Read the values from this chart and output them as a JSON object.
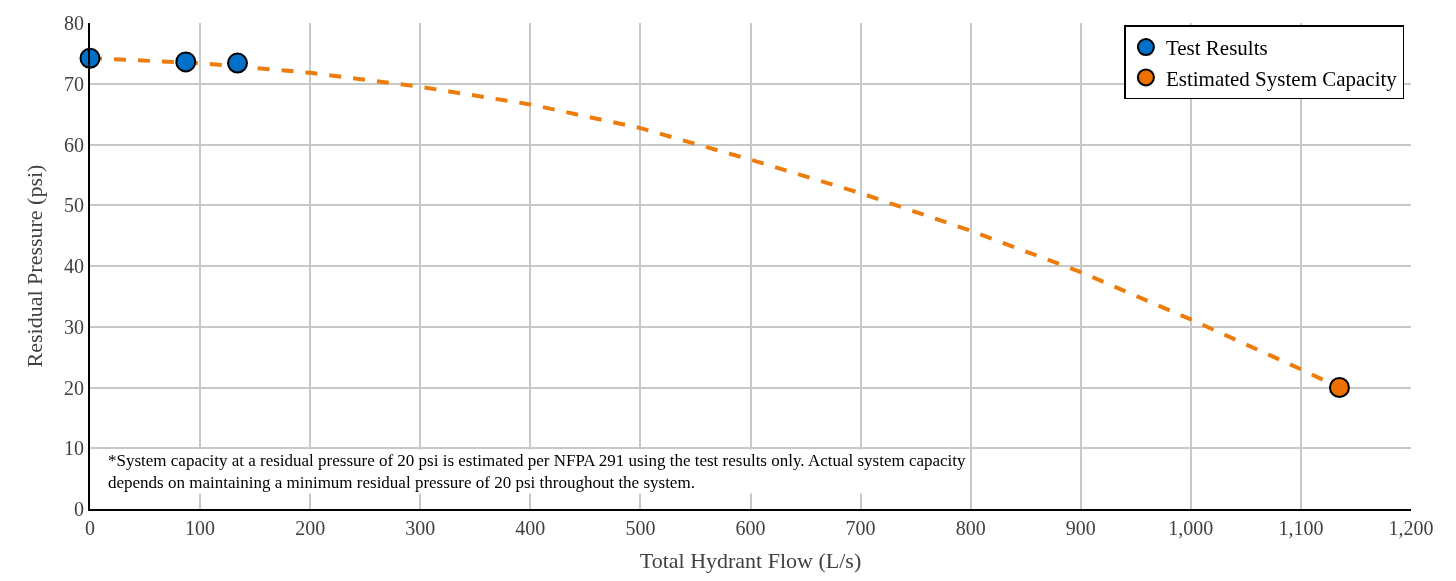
{
  "chart_data": {
    "type": "scatter",
    "xlabel": "Total Hydrant Flow (L/s)",
    "ylabel": "Residual Pressure (psi)",
    "xlim": [
      0,
      1200
    ],
    "xticks": [
      0,
      100,
      200,
      300,
      400,
      500,
      600,
      700,
      800,
      900,
      {
        "value": 1000,
        "label": "1,000"
      },
      {
        "value": 1100,
        "label": "1,100"
      },
      {
        "value": 1200,
        "label": "1,200"
      }
    ],
    "ylim": [
      0,
      80
    ],
    "yticks": [
      0,
      10,
      20,
      30,
      40,
      50,
      60,
      70,
      80
    ],
    "grid": true,
    "legend": "top right",
    "marker": "circle",
    "series": [
      {
        "type": "line",
        "color": "#ed7d0b",
        "line_style": "dashed",
        "marker": "none",
        "x": [
          0,
          100,
          200,
          300,
          400,
          500,
          600,
          700,
          800,
          900,
          1000,
          1100,
          1135
        ],
        "values": [
          74.2,
          73.4,
          71.8,
          69.5,
          66.6,
          62.7,
          57.5,
          52,
          45.8,
          39,
          31.2,
          23,
          20
        ]
      },
      {
        "name": "Test Results",
        "color": "#0070c8",
        "x": [
          0,
          87,
          134
        ],
        "values": [
          74.2,
          73.6,
          73.4
        ]
      },
      {
        "name": "Estimated System Capacity",
        "color": "#ed7000",
        "x": [
          1135
        ],
        "values": [
          20
        ]
      }
    ],
    "annotations": [
      "*System capacity at a residual pressure of 20 psi is estimated per NFPA 291 using the test results only. Actual system capacity\ndepends on maintaining a minimum residual pressure of 20 psi throughout the system."
    ]
  }
}
